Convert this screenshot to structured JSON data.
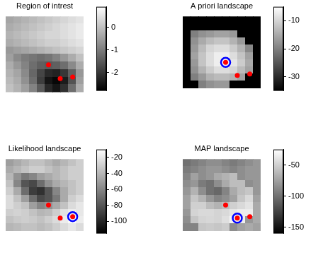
{
  "chart_data": [
    {
      "type": "heatmap",
      "title": "Region of intrest",
      "tick_labels": false,
      "xlim": [
        0,
        10
      ],
      "ylim": [
        0,
        10
      ],
      "cells": [
        [
          -0.4,
          -0.3,
          -0.2,
          -0.1,
          0.0,
          0.1,
          0.2,
          0.3,
          0.4,
          0.5
        ],
        [
          -0.3,
          -0.2,
          -0.1,
          0.0,
          0.1,
          0.2,
          0.3,
          0.4,
          0.5,
          0.6
        ],
        [
          -0.2,
          -0.1,
          0.0,
          0.1,
          0.2,
          0.3,
          0.3,
          0.4,
          0.5,
          0.6
        ],
        [
          -0.3,
          -0.2,
          -0.1,
          0.0,
          0.1,
          0.2,
          0.2,
          0.3,
          0.4,
          0.5
        ],
        [
          -0.6,
          -0.5,
          -0.4,
          -0.3,
          -0.2,
          -0.1,
          0.0,
          0.1,
          0.2,
          0.3
        ],
        [
          -0.5,
          -0.8,
          -1.0,
          -1.1,
          -1.2,
          -1.1,
          -0.9,
          -0.6,
          -0.3,
          0.0
        ],
        [
          -0.3,
          -0.6,
          -0.9,
          -1.2,
          -1.4,
          -1.5,
          -1.4,
          -1.2,
          -0.8,
          -0.3
        ],
        [
          -0.2,
          -0.4,
          -0.8,
          -1.3,
          -1.8,
          -2.2,
          -2.3,
          -2.0,
          -1.4,
          -0.6
        ],
        [
          -0.1,
          -0.3,
          -0.7,
          -1.2,
          -1.9,
          -2.5,
          -2.7,
          -2.4,
          -1.6,
          -0.5
        ],
        [
          0.0,
          -0.2,
          -0.5,
          -0.9,
          -1.5,
          -2.2,
          -2.5,
          -2.1,
          -1.2,
          -0.3
        ]
      ],
      "color_range": [
        -2.8,
        0.9
      ],
      "color_ticks": [
        0,
        -1,
        -2
      ],
      "points": {
        "x": [
          5.5,
          7.0,
          8.6
        ],
        "y": [
          6.4,
          8.2,
          8.0
        ],
        "color": "#ff0000",
        "marker": "circle"
      }
    },
    {
      "type": "heatmap",
      "title": "A priori landscape",
      "tick_labels": false,
      "xlim": [
        0,
        10
      ],
      "ylim": [
        0,
        10
      ],
      "cells": [
        [
          -35,
          -35,
          -35,
          -35,
          -35,
          -35,
          -35,
          -35,
          -35,
          -35
        ],
        [
          -35,
          -35,
          -35,
          -35,
          -35,
          -35,
          -35,
          -35,
          -35,
          -35
        ],
        [
          -35,
          -20,
          -18,
          -17,
          -16,
          -16,
          -17,
          -35,
          -35,
          -35
        ],
        [
          -35,
          -18,
          -15,
          -13,
          -12,
          -12,
          -14,
          -17,
          -35,
          -35
        ],
        [
          -35,
          -17,
          -13,
          -10,
          -9,
          -9,
          -11,
          -14,
          -19,
          -35
        ],
        [
          -35,
          -16,
          -12,
          -9,
          -7,
          -7,
          -9,
          -12,
          -16,
          -35
        ],
        [
          -35,
          -17,
          -12,
          -9,
          -7,
          -6,
          -8,
          -11,
          -15,
          -35
        ],
        [
          -35,
          -18,
          -14,
          -11,
          -9,
          -9,
          -10,
          -13,
          -16,
          -35
        ],
        [
          -35,
          -20,
          -17,
          -14,
          -13,
          -13,
          -14,
          -16,
          -35,
          -35
        ],
        [
          -35,
          -35,
          -20,
          -18,
          -17,
          -17,
          -35,
          -35,
          -35,
          -35
        ]
      ],
      "color_range": [
        -35,
        -5
      ],
      "color_ticks": [
        -10,
        -20,
        -30
      ],
      "points": {
        "x": [
          5.5,
          7.0,
          8.6
        ],
        "y": [
          6.4,
          8.2,
          8.0
        ],
        "color": "#ff0000",
        "marker": "circle"
      },
      "highlight": {
        "x": 5.5,
        "y": 6.4,
        "color": "#0000ff",
        "marker": "circle"
      }
    },
    {
      "type": "heatmap",
      "title": "Likelihood landscape",
      "tick_labels": false,
      "xlim": [
        0,
        10
      ],
      "ylim": [
        0,
        10
      ],
      "cells": [
        [
          -50,
          -45,
          -40,
          -35,
          -35,
          -40,
          -45,
          -40,
          -35,
          -30
        ],
        [
          -45,
          -40,
          -35,
          -30,
          -30,
          -35,
          -40,
          -35,
          -30,
          -30
        ],
        [
          -40,
          -55,
          -65,
          -60,
          -50,
          -45,
          -40,
          -35,
          -30,
          -30
        ],
        [
          -35,
          -60,
          -80,
          -85,
          -70,
          -55,
          -45,
          -40,
          -35,
          -30
        ],
        [
          -30,
          -45,
          -70,
          -90,
          -95,
          -80,
          -60,
          -45,
          -35,
          -30
        ],
        [
          -25,
          -35,
          -50,
          -70,
          -85,
          -80,
          -65,
          -45,
          -30,
          -25
        ],
        [
          -25,
          -30,
          -35,
          -50,
          -60,
          -55,
          -45,
          -35,
          -25,
          -20
        ],
        [
          -30,
          -28,
          -30,
          -35,
          -40,
          -38,
          -30,
          -22,
          -18,
          -20
        ],
        [
          -35,
          -32,
          -30,
          -32,
          -35,
          -30,
          -25,
          -18,
          -12,
          -18
        ],
        [
          -40,
          -38,
          -35,
          -35,
          -38,
          -35,
          -30,
          -25,
          -20,
          -25
        ]
      ],
      "color_range": [
        -115,
        -10
      ],
      "color_ticks": [
        -20,
        -40,
        -60,
        -80,
        -100
      ],
      "points": {
        "x": [
          5.5,
          7.0,
          8.6
        ],
        "y": [
          6.4,
          8.2,
          8.0
        ],
        "color": "#ff0000",
        "marker": "circle"
      },
      "highlight": {
        "x": 8.6,
        "y": 8.0,
        "color": "#0000ff",
        "marker": "circle"
      }
    },
    {
      "type": "heatmap",
      "title": "MAP landscape",
      "tick_labels": false,
      "xlim": [
        0,
        10
      ],
      "ylim": [
        0,
        10
      ],
      "cells": [
        [
          -100,
          -95,
          -90,
          -85,
          -85,
          -90,
          -95,
          -90,
          -85,
          -80
        ],
        [
          -95,
          -90,
          -85,
          -80,
          -80,
          -85,
          -90,
          -85,
          -80,
          -80
        ],
        [
          -90,
          -75,
          -85,
          -80,
          -70,
          -65,
          -60,
          -85,
          -80,
          -80
        ],
        [
          -85,
          -80,
          -95,
          -100,
          -85,
          -70,
          -60,
          -60,
          -85,
          -80
        ],
        [
          -80,
          -65,
          -85,
          -100,
          -105,
          -90,
          -70,
          -60,
          -55,
          -80
        ],
        [
          -75,
          -55,
          -65,
          -80,
          -90,
          -85,
          -75,
          -55,
          -45,
          -75
        ],
        [
          -75,
          -50,
          -50,
          -60,
          -65,
          -60,
          -50,
          -45,
          -40,
          -70
        ],
        [
          -80,
          -48,
          -45,
          -45,
          -48,
          -45,
          -38,
          -35,
          -35,
          -70
        ],
        [
          -85,
          -55,
          -48,
          -46,
          -48,
          -42,
          -30,
          -34,
          -80,
          -70
        ],
        [
          -90,
          -90,
          -55,
          -53,
          -55,
          -52,
          -85,
          -75,
          -70,
          -75
        ]
      ],
      "color_range": [
        -160,
        -25
      ],
      "color_ticks": [
        -50,
        -100,
        -150
      ],
      "points": {
        "x": [
          5.5,
          7.0,
          8.6
        ],
        "y": [
          6.4,
          8.2,
          8.0
        ],
        "color": "#ff0000",
        "marker": "circle"
      },
      "highlight": {
        "x": 7.0,
        "y": 8.2,
        "color": "#0000ff",
        "marker": "circle"
      }
    }
  ]
}
